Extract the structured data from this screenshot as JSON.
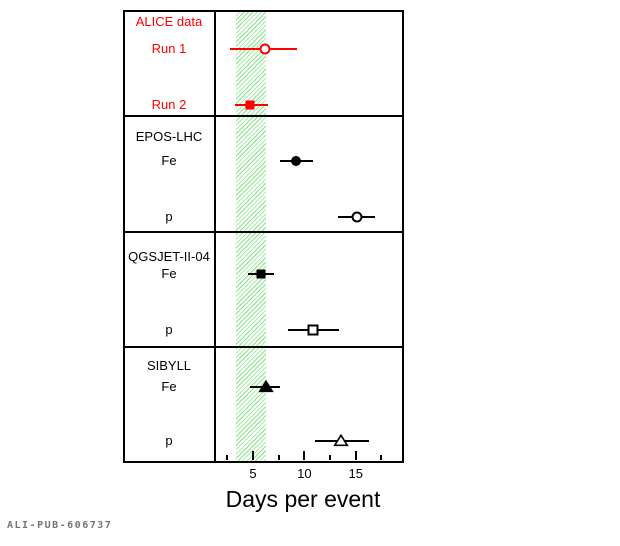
{
  "watermark": "ALI-PUB-606737",
  "chart_data": {
    "type": "scatter",
    "title": "",
    "xlabel": "Days per event",
    "ylabel": "",
    "xlim": [
      1.3,
      19.6
    ],
    "xticks": [
      5,
      10,
      15
    ],
    "minor_xticks": [
      2.5,
      7.5,
      12.5,
      17.5
    ],
    "grid": false,
    "legend_position": "none",
    "band": {
      "meaning": "hatched-reference-band",
      "x_min": 3.3,
      "x_max": 6.3,
      "color": "#86e686",
      "style": "diagonal-hatch"
    },
    "groups": [
      {
        "header": "ALICE data",
        "color": "#ff0000",
        "rows": [
          {
            "label": "Run 1",
            "marker": "open-circle",
            "x": 6.2,
            "x_lo": 2.8,
            "x_hi": 9.3
          },
          {
            "label": "Run 2",
            "marker": "filled-square",
            "x": 4.7,
            "x_lo": 3.2,
            "x_hi": 6.5
          }
        ]
      },
      {
        "header": "EPOS-LHC",
        "color": "#000000",
        "rows": [
          {
            "label": "Fe",
            "marker": "filled-circle",
            "x": 9.2,
            "x_lo": 7.6,
            "x_hi": 10.8
          },
          {
            "label": "p",
            "marker": "open-circle",
            "x": 15.1,
            "x_lo": 13.3,
            "x_hi": 16.9
          }
        ]
      },
      {
        "header": "QGSJET-II-04",
        "color": "#000000",
        "rows": [
          {
            "label": "Fe",
            "marker": "filled-square",
            "x": 5.8,
            "x_lo": 4.5,
            "x_hi": 7.0
          },
          {
            "label": "p",
            "marker": "open-square",
            "x": 10.8,
            "x_lo": 8.4,
            "x_hi": 13.4
          }
        ]
      },
      {
        "header": "SIBYLL",
        "color": "#000000",
        "rows": [
          {
            "label": "Fe",
            "marker": "filled-triangle",
            "x": 6.3,
            "x_lo": 4.7,
            "x_hi": 7.6
          },
          {
            "label": "p",
            "marker": "open-triangle",
            "x": 13.6,
            "x_lo": 11.0,
            "x_hi": 16.3
          }
        ]
      }
    ]
  }
}
